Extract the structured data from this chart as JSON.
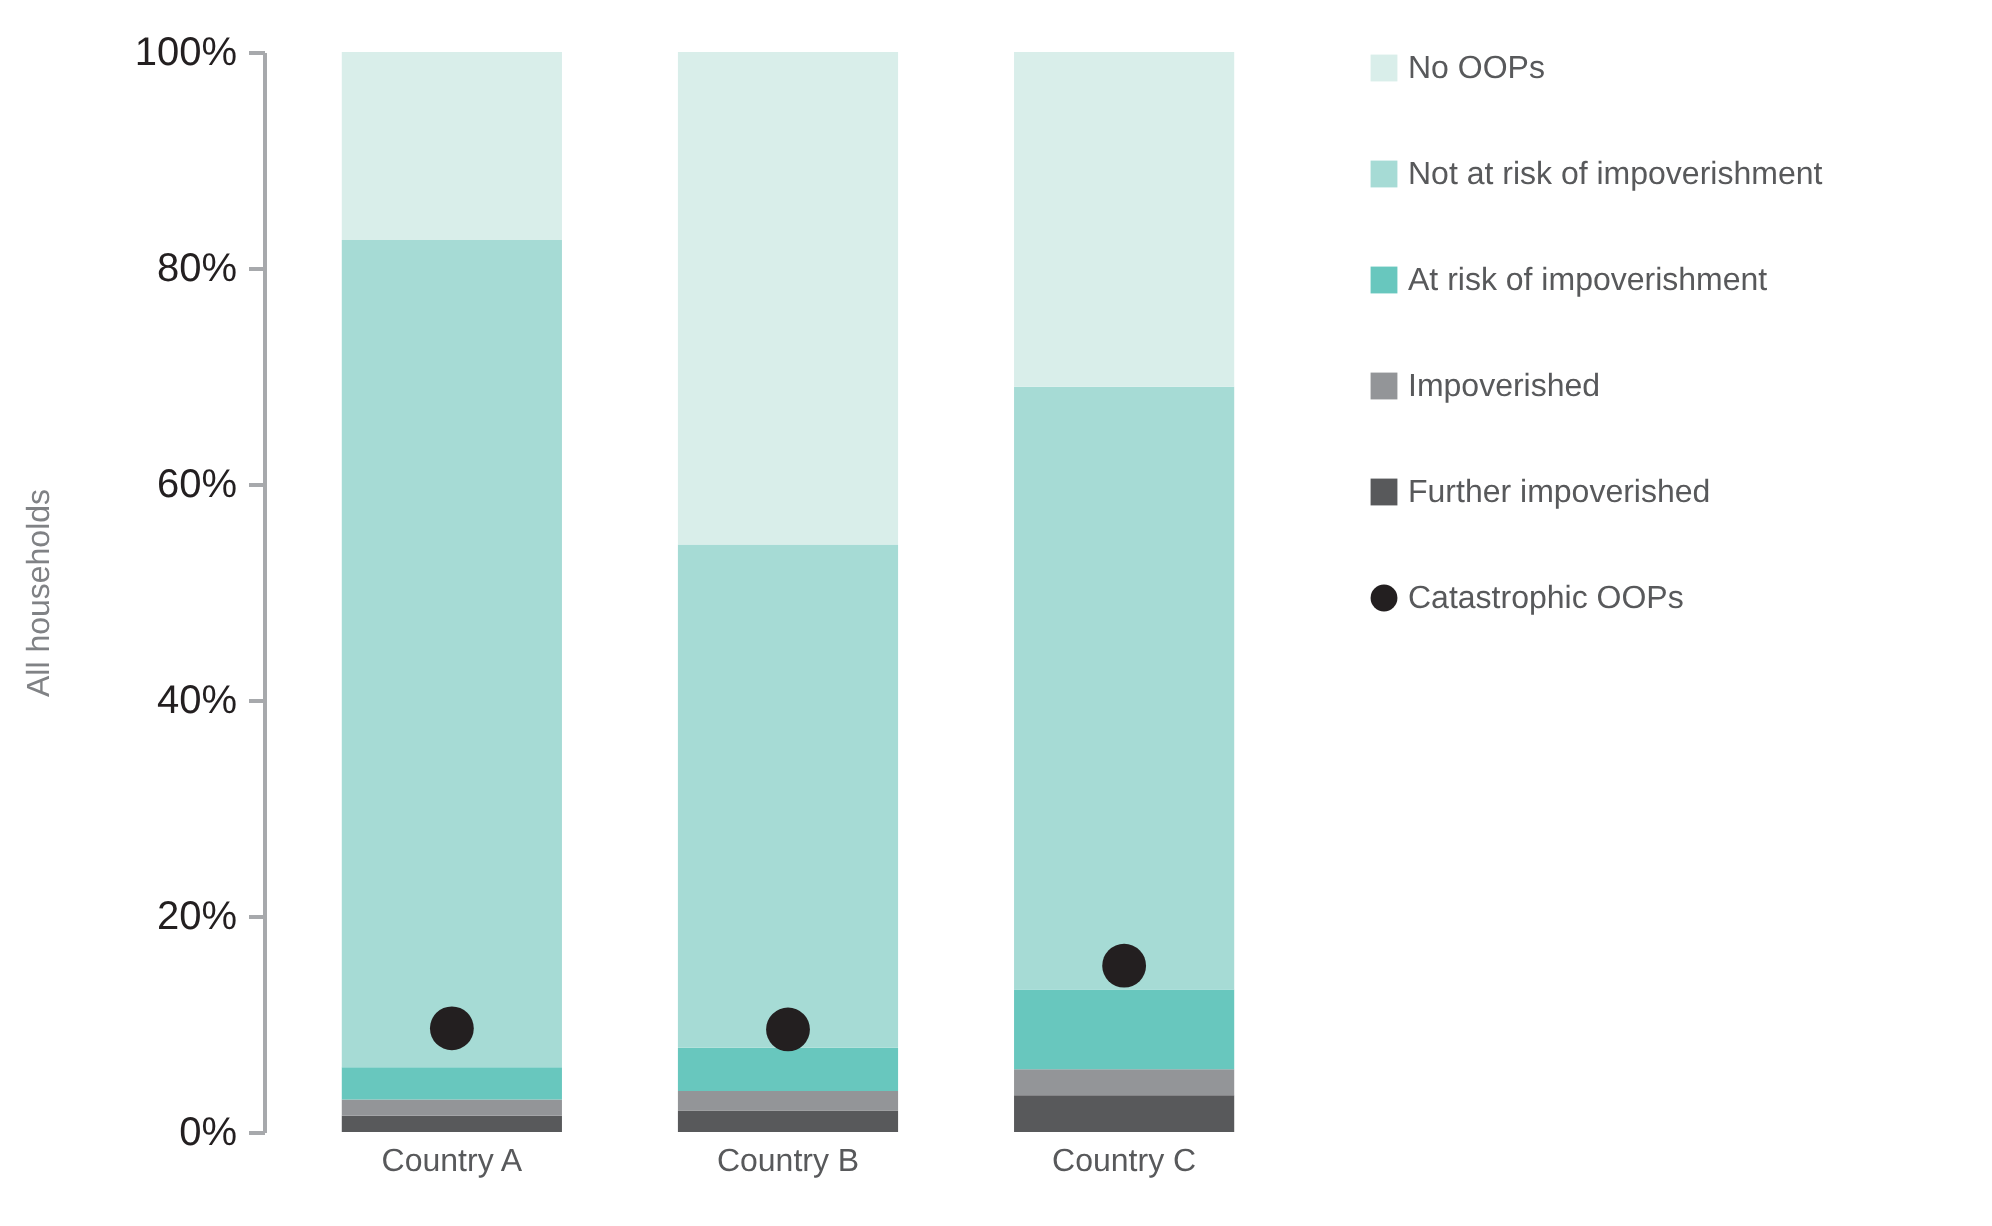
{
  "chart_data": {
    "type": "bar",
    "stacked": true,
    "ylabel": "All households",
    "legend": "right",
    "categories": [
      "Country A",
      "Country B",
      "Country C"
    ],
    "ylim": [
      0,
      100
    ],
    "yticks": [
      {
        "value": 0,
        "label": "0%"
      },
      {
        "value": 20,
        "label": "20%"
      },
      {
        "value": 40,
        "label": "40%"
      },
      {
        "value": 60,
        "label": "60%"
      },
      {
        "value": 80,
        "label": "80%"
      },
      {
        "value": 100,
        "label": "100%"
      }
    ],
    "series": [
      {
        "name": "Further impoverished",
        "color": "#58595b",
        "values": [
          1.5,
          2.0,
          3.4
        ]
      },
      {
        "name": "Impoverished",
        "color": "#939598",
        "values": [
          1.5,
          1.8,
          2.4
        ]
      },
      {
        "name": "At risk of impoverishment",
        "color": "#68c7be",
        "values": [
          3.0,
          4.0,
          7.4
        ]
      },
      {
        "name": "Not at risk of impoverishment",
        "color": "#a6dbd5",
        "values": [
          76.6,
          46.6,
          55.8
        ]
      },
      {
        "name": "No OOPs",
        "color": "#d9eeea",
        "values": [
          17.4,
          45.6,
          31.0
        ]
      },
      {
        "name": "Catastrophic OOPs",
        "color": "#231f20",
        "type": "scatter",
        "marker": "circle",
        "x": [
          "Country A",
          "Country B",
          "Country C"
        ],
        "values": [
          9.6,
          9.5,
          15.4
        ]
      }
    ]
  }
}
